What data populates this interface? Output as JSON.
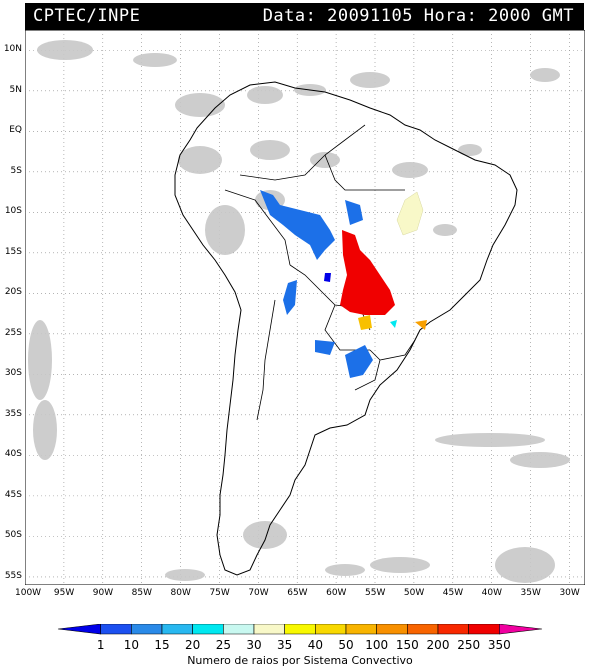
{
  "header": {
    "institution": "CPTEC/INPE",
    "datetime": "Data: 20091105 Hora: 2000 GMT"
  },
  "map": {
    "lat_labels": [
      "10N",
      "5N",
      "EQ",
      "5S",
      "10S",
      "15S",
      "20S",
      "25S",
      "30S",
      "35S",
      "40S",
      "45S",
      "50S",
      "55S"
    ],
    "lon_labels": [
      "100W",
      "95W",
      "90W",
      "85W",
      "80W",
      "75W",
      "70W",
      "65W",
      "60W",
      "55W",
      "50W",
      "45W",
      "40W",
      "35W",
      "30W"
    ],
    "lat_range": [
      -56,
      12.5
    ],
    "lon_range": [
      -100,
      -28
    ],
    "grid": "dotted",
    "cloud_color": "#c8c8c8",
    "land_border_color": "#000000"
  },
  "colorbar": {
    "title": "Numero de raios por Sistema Convectivo",
    "ticks": [
      "1",
      "10",
      "15",
      "20",
      "25",
      "30",
      "35",
      "40",
      "50",
      "100",
      "150",
      "200",
      "250",
      "350"
    ],
    "colors": [
      "#0000e8",
      "#1c50f0",
      "#2a8ae8",
      "#28b8f0",
      "#00e8f0",
      "#c8f8f0",
      "#f8f8c8",
      "#f8f800",
      "#f8d800",
      "#f8b400",
      "#f89000",
      "#f86400",
      "#f82800",
      "#f00000",
      "#f000a0"
    ]
  },
  "storms": [
    {
      "color": "#1c70e8",
      "label": "10-15"
    },
    {
      "color": "#f00000",
      "label": "250-350"
    },
    {
      "color": "#f8f8c8",
      "label": "30-35"
    },
    {
      "color": "#f8c000",
      "label": "50-100"
    },
    {
      "color": "#00e8f0",
      "label": "25-30"
    },
    {
      "color": "#0000e8",
      "label": "1-10"
    }
  ]
}
